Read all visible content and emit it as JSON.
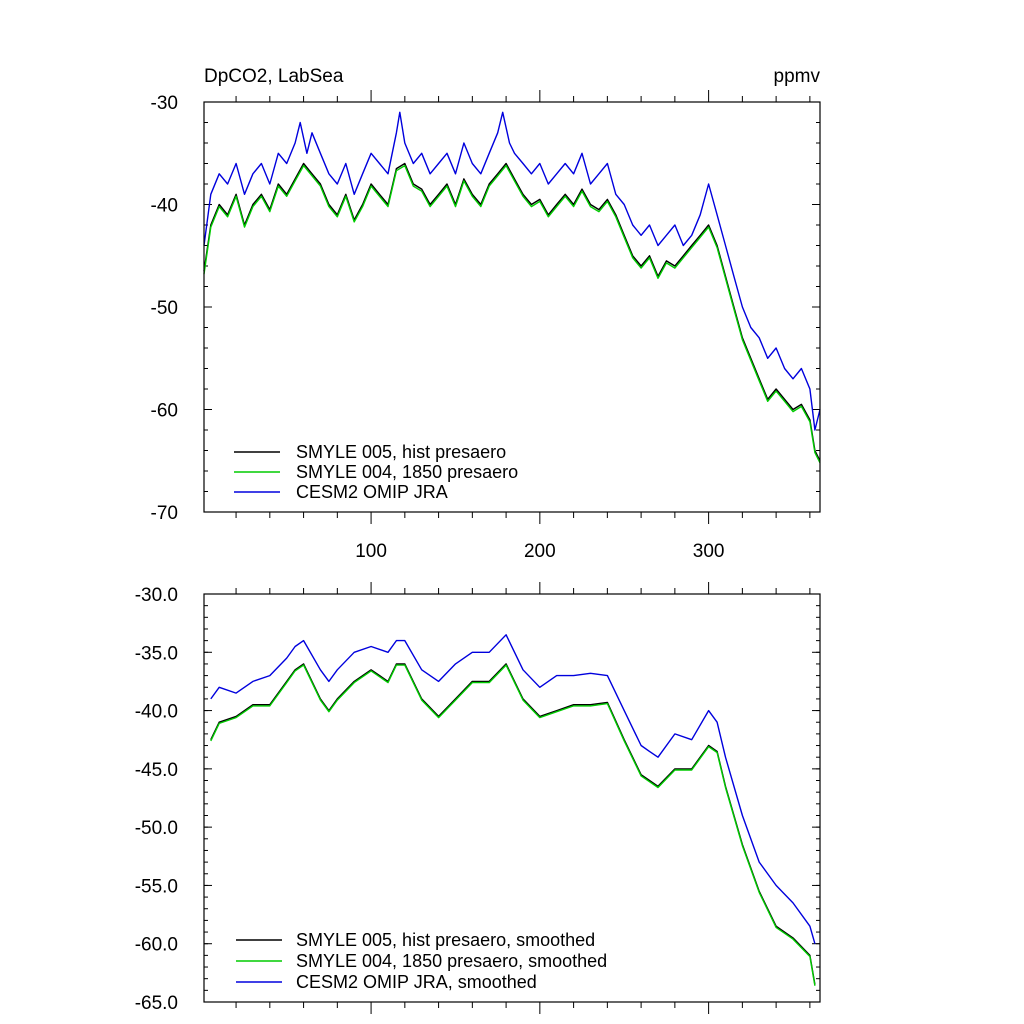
{
  "chart_data": [
    {
      "type": "line",
      "title_left": "DpCO2, LabSea",
      "title_right": "ppmv",
      "ylim": [
        -70,
        -30
      ],
      "xlim": [
        1,
        366
      ],
      "y_ticks": [
        -30,
        -40,
        -50,
        -60,
        -70
      ],
      "y_tick_labels": [
        "-30",
        "-40",
        "-50",
        "-60",
        "-70"
      ],
      "x_ticks": [
        100,
        200,
        300
      ],
      "x_tick_labels": [
        "100",
        "200",
        "300"
      ],
      "legend": {
        "position": "bottom-left",
        "entries": [
          "SMYLE 005, hist presaero",
          "SMYLE 004, 1850 presaero",
          "CESM2 OMIP JRA"
        ]
      },
      "series": [
        {
          "name": "CESM2 OMIP JRA",
          "color": "#0000dd",
          "x": [
            1,
            5,
            10,
            15,
            20,
            25,
            30,
            35,
            40,
            45,
            50,
            55,
            58,
            62,
            65,
            70,
            75,
            80,
            85,
            90,
            95,
            100,
            105,
            110,
            115,
            117,
            120,
            125,
            130,
            135,
            140,
            145,
            150,
            155,
            160,
            165,
            170,
            175,
            178,
            182,
            185,
            190,
            195,
            200,
            205,
            210,
            215,
            220,
            225,
            230,
            235,
            240,
            245,
            250,
            255,
            260,
            265,
            270,
            275,
            280,
            285,
            290,
            295,
            300,
            305,
            310,
            315,
            320,
            325,
            330,
            335,
            340,
            345,
            350,
            355,
            360,
            363,
            366
          ],
          "values": [
            -44,
            -39,
            -37,
            -38,
            -36,
            -39,
            -37,
            -36,
            -38,
            -35,
            -36,
            -34,
            -32,
            -35,
            -33,
            -35,
            -37,
            -38,
            -36,
            -39,
            -37,
            -35,
            -36,
            -37,
            -33,
            -31,
            -34,
            -36,
            -35,
            -37,
            -36,
            -35,
            -37,
            -34,
            -36,
            -37,
            -35,
            -33,
            -31,
            -34,
            -35,
            -36,
            -37,
            -36,
            -38,
            -37,
            -36,
            -37,
            -35,
            -38,
            -37,
            -36,
            -39,
            -40,
            -42,
            -43,
            -42,
            -44,
            -43,
            -42,
            -44,
            -43,
            -41,
            -38,
            -41,
            -44,
            -47,
            -50,
            -52,
            -53,
            -55,
            -54,
            -56,
            -57,
            -56,
            -58,
            -62,
            -60
          ]
        },
        {
          "name": "SMYLE 005, hist presaero",
          "color": "#000000",
          "x": [
            1,
            5,
            10,
            15,
            20,
            25,
            30,
            35,
            40,
            45,
            50,
            55,
            60,
            65,
            70,
            75,
            80,
            85,
            90,
            95,
            100,
            105,
            110,
            115,
            120,
            125,
            130,
            135,
            140,
            145,
            150,
            155,
            160,
            165,
            170,
            175,
            180,
            185,
            190,
            195,
            200,
            205,
            210,
            215,
            220,
            225,
            230,
            235,
            240,
            245,
            250,
            255,
            260,
            265,
            270,
            275,
            280,
            285,
            290,
            295,
            300,
            305,
            310,
            315,
            320,
            325,
            330,
            335,
            340,
            345,
            350,
            355,
            360,
            363,
            366
          ],
          "values": [
            -46.5,
            -42,
            -40,
            -41,
            -39,
            -42,
            -40,
            -39,
            -40.5,
            -38,
            -39,
            -37.5,
            -36,
            -37,
            -38,
            -40,
            -41,
            -39,
            -41.5,
            -40,
            -38,
            -39,
            -40,
            -36.5,
            -36,
            -38,
            -38.5,
            -40,
            -39,
            -38,
            -40,
            -37.5,
            -39,
            -40,
            -38,
            -37,
            -36,
            -37.5,
            -39,
            -40,
            -39.5,
            -41,
            -40,
            -39,
            -40,
            -38.5,
            -40,
            -40.5,
            -39.5,
            -41,
            -43,
            -45,
            -46,
            -45,
            -47,
            -45.5,
            -46,
            -45,
            -44,
            -43,
            -42,
            -44,
            -47,
            -50,
            -53,
            -55,
            -57,
            -59,
            -58,
            -59,
            -60,
            -59.5,
            -61,
            -64,
            -65
          ]
        },
        {
          "name": "SMYLE 004, 1850 presaero",
          "color": "#00cc00",
          "x": [
            1,
            5,
            10,
            15,
            20,
            25,
            30,
            35,
            40,
            45,
            50,
            55,
            60,
            65,
            70,
            75,
            80,
            85,
            90,
            95,
            100,
            105,
            110,
            115,
            120,
            125,
            130,
            135,
            140,
            145,
            150,
            155,
            160,
            165,
            170,
            175,
            180,
            185,
            190,
            195,
            200,
            205,
            210,
            215,
            220,
            225,
            230,
            235,
            240,
            245,
            250,
            255,
            260,
            265,
            270,
            275,
            280,
            285,
            290,
            295,
            300,
            305,
            310,
            315,
            320,
            325,
            330,
            335,
            340,
            345,
            350,
            355,
            360,
            363,
            366
          ],
          "values": [
            -46.8,
            -42.2,
            -40.2,
            -41.2,
            -39.2,
            -42.2,
            -40.2,
            -39.2,
            -40.7,
            -38.2,
            -39.2,
            -37.7,
            -36.2,
            -37.2,
            -38.2,
            -40.2,
            -41.2,
            -39.2,
            -41.7,
            -40.2,
            -38.2,
            -39.2,
            -40.2,
            -36.7,
            -36.2,
            -38.2,
            -38.7,
            -40.2,
            -39.2,
            -38.2,
            -40.2,
            -37.7,
            -39.2,
            -40.2,
            -38.2,
            -37.2,
            -36.2,
            -37.7,
            -39.2,
            -40.2,
            -39.7,
            -41.2,
            -40.2,
            -39.2,
            -40.2,
            -38.7,
            -40.2,
            -40.7,
            -39.7,
            -41.2,
            -43.2,
            -45.2,
            -46.2,
            -45.2,
            -47.2,
            -45.7,
            -46.2,
            -45.2,
            -44.2,
            -43.2,
            -42.2,
            -44.2,
            -47.2,
            -50.2,
            -53.2,
            -55.2,
            -57.2,
            -59.2,
            -58.2,
            -59.2,
            -60.2,
            -59.7,
            -61.2,
            -64.2,
            -65.2
          ]
        }
      ]
    },
    {
      "type": "line",
      "ylim": [
        -65,
        -30
      ],
      "xlim": [
        1,
        366
      ],
      "y_ticks": [
        -30,
        -35,
        -40,
        -45,
        -50,
        -55,
        -60,
        -65
      ],
      "y_tick_labels": [
        "-30.0",
        "-35.0",
        "-40.0",
        "-45.0",
        "-50.0",
        "-55.0",
        "-60.0",
        "-65.0"
      ],
      "x_ticks": [
        100,
        200,
        300
      ],
      "legend": {
        "position": "bottom-left",
        "entries": [
          "SMYLE 005, hist presaero, smoothed",
          "SMYLE 004, 1850 presaero, smoothed",
          "CESM2 OMIP JRA, smoothed"
        ]
      },
      "series": [
        {
          "name": "CESM2 OMIP JRA, smoothed",
          "color": "#0000dd",
          "x": [
            5,
            10,
            20,
            30,
            40,
            50,
            55,
            60,
            70,
            75,
            80,
            90,
            100,
            110,
            115,
            120,
            130,
            140,
            150,
            160,
            170,
            180,
            190,
            200,
            210,
            220,
            230,
            240,
            250,
            260,
            265,
            270,
            280,
            290,
            300,
            305,
            310,
            320,
            330,
            340,
            350,
            360,
            363
          ],
          "values": [
            -39,
            -38,
            -38.5,
            -37.5,
            -37,
            -35.5,
            -34.5,
            -34,
            -36.5,
            -37.5,
            -36.5,
            -35,
            -34.5,
            -35,
            -34,
            -34,
            -36.5,
            -37.5,
            -36,
            -35,
            -35,
            -33.5,
            -36.5,
            -38,
            -37,
            -37,
            -36.8,
            -37,
            -40,
            -43,
            -43.5,
            -44,
            -42,
            -42.5,
            -40,
            -41,
            -44,
            -49,
            -53,
            -55,
            -56.5,
            -58.5,
            -60
          ]
        },
        {
          "name": "SMYLE 005, hist presaero, smoothed",
          "color": "#000000",
          "x": [
            5,
            10,
            20,
            30,
            40,
            50,
            55,
            60,
            70,
            75,
            80,
            90,
            100,
            110,
            115,
            120,
            130,
            140,
            150,
            160,
            170,
            180,
            190,
            200,
            210,
            220,
            230,
            240,
            250,
            260,
            265,
            270,
            280,
            290,
            300,
            305,
            310,
            320,
            330,
            340,
            350,
            360,
            363
          ],
          "values": [
            -42.5,
            -41,
            -40.5,
            -39.5,
            -39.5,
            -37.5,
            -36.5,
            -36,
            -39,
            -40,
            -39,
            -37.5,
            -36.5,
            -37.5,
            -36,
            -36,
            -39,
            -40.5,
            -39,
            -37.5,
            -37.5,
            -36,
            -39,
            -40.5,
            -40,
            -39.5,
            -39.5,
            -39.3,
            -42.5,
            -45.5,
            -46,
            -46.5,
            -45,
            -45,
            -43,
            -43.5,
            -46.5,
            -51.5,
            -55.5,
            -58.5,
            -59.5,
            -61,
            -63.5
          ]
        },
        {
          "name": "SMYLE 004, 1850 presaero, smoothed",
          "color": "#00cc00",
          "x": [
            5,
            10,
            20,
            30,
            40,
            50,
            55,
            60,
            70,
            75,
            80,
            90,
            100,
            110,
            115,
            120,
            130,
            140,
            150,
            160,
            170,
            180,
            190,
            200,
            210,
            220,
            230,
            240,
            250,
            260,
            265,
            270,
            280,
            290,
            300,
            305,
            310,
            320,
            330,
            340,
            350,
            360,
            363
          ],
          "values": [
            -42.6,
            -41.1,
            -40.6,
            -39.6,
            -39.6,
            -37.6,
            -36.6,
            -36.1,
            -39.1,
            -40.1,
            -39.1,
            -37.6,
            -36.6,
            -37.6,
            -36.1,
            -36.1,
            -39.1,
            -40.6,
            -39.1,
            -37.6,
            -37.6,
            -36.1,
            -39.1,
            -40.6,
            -40.1,
            -39.6,
            -39.6,
            -39.4,
            -42.6,
            -45.6,
            -46.1,
            -46.6,
            -45.1,
            -45.1,
            -43.1,
            -43.6,
            -46.6,
            -51.6,
            -55.6,
            -58.6,
            -59.6,
            -61.1,
            -63.6
          ]
        }
      ]
    }
  ]
}
